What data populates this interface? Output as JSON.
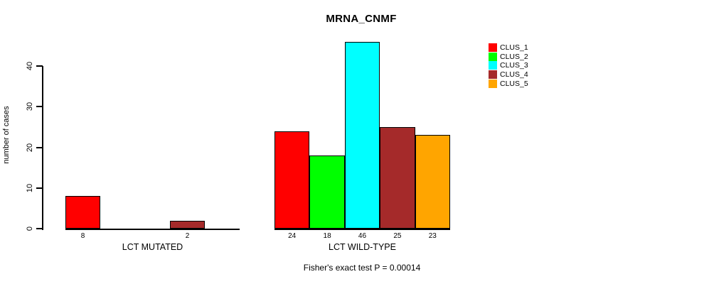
{
  "chart_data": {
    "type": "bar",
    "title": "MRNA_CNMF",
    "ylabel": "number of cases",
    "categories": [
      "LCT MUTATED",
      "LCT WILD-TYPE"
    ],
    "series": [
      {
        "name": "CLUS_1",
        "color": "#ff0000",
        "values": [
          8,
          24
        ]
      },
      {
        "name": "CLUS_2",
        "color": "#00ff00",
        "values": [
          0,
          18
        ]
      },
      {
        "name": "CLUS_3",
        "color": "#00ffff",
        "values": [
          0,
          46
        ]
      },
      {
        "name": "CLUS_4",
        "color": "#a52a2a",
        "values": [
          2,
          25
        ]
      },
      {
        "name": "CLUS_5",
        "color": "#ffa500",
        "values": [
          0,
          23
        ]
      }
    ],
    "y_ticks": [
      0,
      10,
      20,
      30,
      40
    ],
    "ylim": [
      0,
      46
    ],
    "grid": false,
    "legend_position": "right",
    "bar_value_labels": "value shown below each nonzero bar",
    "annotation": "Fisher's exact test P = 0.00014"
  }
}
